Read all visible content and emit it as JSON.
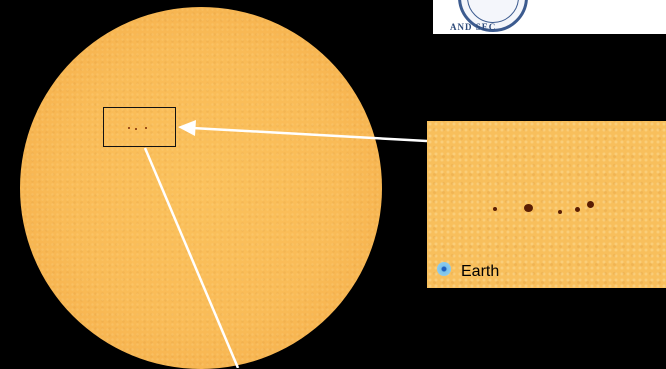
{
  "scene": {
    "background_color": "#000000",
    "sun_color": "#f9bb57",
    "sunspot_color": "#5a1e04",
    "arrow_color": "#ffffff"
  },
  "logo": {
    "visible_text": "AND SEC",
    "icon": "seal-icon"
  },
  "zoom_inset": {
    "earth_label": "Earth",
    "earth_icon": "earth-scale-icon"
  }
}
